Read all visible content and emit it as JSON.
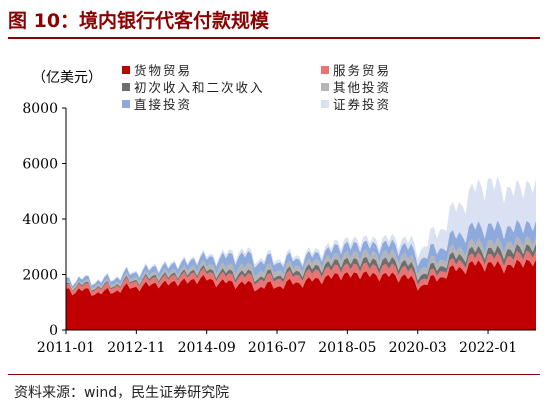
{
  "header": {
    "title": "图 10：境内银行代客付款规模"
  },
  "footer": {
    "source": "资料来源：wind，民生证券研究院"
  },
  "chart_data": {
    "type": "area",
    "stacked": true,
    "ylabel": "（亿美元）",
    "ylim": [
      0,
      8000
    ],
    "yticks": [
      "0",
      "2000",
      "4000",
      "6000",
      "8000"
    ],
    "xticks": [
      "2011-01",
      "2012-11",
      "2014-09",
      "2016-07",
      "2018-05",
      "2020-03",
      "2022-01"
    ],
    "legend_position": "top",
    "series": [
      {
        "name": "货物贸易",
        "color": "#C00000",
        "points": [
          [
            "2011-01",
            1450
          ],
          [
            "2011-07",
            1400
          ],
          [
            "2012-01",
            1330
          ],
          [
            "2012-07",
            1500
          ],
          [
            "2012-11",
            1550
          ],
          [
            "2013-05",
            1650
          ],
          [
            "2013-11",
            1700
          ],
          [
            "2014-05",
            1800
          ],
          [
            "2014-09",
            1850
          ],
          [
            "2015-01",
            1700
          ],
          [
            "2015-07",
            1700
          ],
          [
            "2016-01",
            1550
          ],
          [
            "2016-07",
            1600
          ],
          [
            "2017-01",
            1700
          ],
          [
            "2017-07",
            1800
          ],
          [
            "2018-01",
            1950
          ],
          [
            "2018-05",
            2000
          ],
          [
            "2018-11",
            2000
          ],
          [
            "2019-05",
            1950
          ],
          [
            "2019-11",
            1950
          ],
          [
            "2020-03",
            1600
          ],
          [
            "2020-06",
            1700
          ],
          [
            "2020-12",
            2050
          ],
          [
            "2021-06",
            2300
          ],
          [
            "2022-01",
            2400
          ],
          [
            "2022-06",
            2250
          ],
          [
            "2022-12",
            2450
          ],
          [
            "2023-04",
            2400
          ]
        ]
      },
      {
        "name": "服务贸易",
        "color": "#E87474",
        "points": [
          [
            "2011-01",
            150
          ],
          [
            "2011-07",
            160
          ],
          [
            "2012-01",
            170
          ],
          [
            "2012-07",
            180
          ],
          [
            "2012-11",
            190
          ],
          [
            "2013-05",
            200
          ],
          [
            "2013-11",
            210
          ],
          [
            "2014-05",
            220
          ],
          [
            "2014-09",
            230
          ],
          [
            "2015-01",
            240
          ],
          [
            "2015-07",
            250
          ],
          [
            "2016-01",
            260
          ],
          [
            "2016-07",
            270
          ],
          [
            "2017-01",
            270
          ],
          [
            "2017-07",
            280
          ],
          [
            "2018-01",
            290
          ],
          [
            "2018-05",
            300
          ],
          [
            "2018-11",
            300
          ],
          [
            "2019-05",
            300
          ],
          [
            "2019-11",
            300
          ],
          [
            "2020-03",
            220
          ],
          [
            "2020-06",
            200
          ],
          [
            "2020-12",
            220
          ],
          [
            "2021-06",
            250
          ],
          [
            "2022-01",
            280
          ],
          [
            "2022-06",
            290
          ],
          [
            "2022-12",
            300
          ],
          [
            "2023-04",
            310
          ]
        ]
      },
      {
        "name": "初次收入和二次收入",
        "color": "#6E6E6E",
        "points": [
          [
            "2011-01",
            40
          ],
          [
            "2011-07",
            50
          ],
          [
            "2012-01",
            50
          ],
          [
            "2012-07",
            60
          ],
          [
            "2012-11",
            60
          ],
          [
            "2013-05",
            80
          ],
          [
            "2013-11",
            80
          ],
          [
            "2014-05",
            100
          ],
          [
            "2014-09",
            110
          ],
          [
            "2015-01",
            120
          ],
          [
            "2015-07",
            140
          ],
          [
            "2016-01",
            120
          ],
          [
            "2016-07",
            130
          ],
          [
            "2017-01",
            140
          ],
          [
            "2017-07",
            170
          ],
          [
            "2018-01",
            190
          ],
          [
            "2018-05",
            200
          ],
          [
            "2018-11",
            200
          ],
          [
            "2019-05",
            220
          ],
          [
            "2019-11",
            210
          ],
          [
            "2020-03",
            180
          ],
          [
            "2020-06",
            200
          ],
          [
            "2020-12",
            190
          ],
          [
            "2021-06",
            230
          ],
          [
            "2022-01",
            220
          ],
          [
            "2022-06",
            260
          ],
          [
            "2022-12",
            220
          ],
          [
            "2023-04",
            230
          ]
        ]
      },
      {
        "name": "其他投资",
        "color": "#B5B5B5",
        "points": [
          [
            "2011-01",
            60
          ],
          [
            "2011-07",
            70
          ],
          [
            "2012-01",
            80
          ],
          [
            "2012-07",
            90
          ],
          [
            "2012-11",
            100
          ],
          [
            "2013-05",
            120
          ],
          [
            "2013-11",
            130
          ],
          [
            "2014-05",
            150
          ],
          [
            "2014-09",
            160
          ],
          [
            "2015-01",
            180
          ],
          [
            "2015-07",
            220
          ],
          [
            "2016-01",
            200
          ],
          [
            "2016-07",
            190
          ],
          [
            "2017-01",
            180
          ],
          [
            "2017-07",
            190
          ],
          [
            "2018-01",
            210
          ],
          [
            "2018-05",
            230
          ],
          [
            "2018-11",
            240
          ],
          [
            "2019-05",
            250
          ],
          [
            "2019-11",
            250
          ],
          [
            "2020-03",
            230
          ],
          [
            "2020-06",
            220
          ],
          [
            "2020-12",
            230
          ],
          [
            "2021-06",
            250
          ],
          [
            "2022-01",
            260
          ],
          [
            "2022-06",
            260
          ],
          [
            "2022-12",
            270
          ],
          [
            "2023-04",
            260
          ]
        ]
      },
      {
        "name": "直接投资",
        "color": "#8EA9DB",
        "points": [
          [
            "2011-01",
            120
          ],
          [
            "2011-07",
            130
          ],
          [
            "2012-01",
            140
          ],
          [
            "2012-07",
            170
          ],
          [
            "2012-11",
            180
          ],
          [
            "2013-05",
            200
          ],
          [
            "2013-11",
            220
          ],
          [
            "2014-05",
            250
          ],
          [
            "2014-09",
            280
          ],
          [
            "2015-01",
            320
          ],
          [
            "2015-07",
            420
          ],
          [
            "2016-01",
            360
          ],
          [
            "2016-07",
            300
          ],
          [
            "2017-01",
            260
          ],
          [
            "2017-07",
            250
          ],
          [
            "2018-01",
            300
          ],
          [
            "2018-05",
            330
          ],
          [
            "2018-11",
            320
          ],
          [
            "2019-05",
            330
          ],
          [
            "2019-11",
            350
          ],
          [
            "2020-03",
            350
          ],
          [
            "2020-06",
            380
          ],
          [
            "2020-12",
            450
          ],
          [
            "2021-06",
            550
          ],
          [
            "2022-01",
            600
          ],
          [
            "2022-06",
            550
          ],
          [
            "2022-12",
            560
          ],
          [
            "2023-04",
            520
          ]
        ]
      },
      {
        "name": "证券投资",
        "color": "#D9E1F2",
        "points": [
          [
            "2011-01",
            30
          ],
          [
            "2011-07",
            30
          ],
          [
            "2012-01",
            40
          ],
          [
            "2012-07",
            40
          ],
          [
            "2012-11",
            50
          ],
          [
            "2013-05",
            60
          ],
          [
            "2013-11",
            60
          ],
          [
            "2014-05",
            70
          ],
          [
            "2014-09",
            80
          ],
          [
            "2015-01",
            100
          ],
          [
            "2015-07",
            140
          ],
          [
            "2016-01",
            120
          ],
          [
            "2016-07",
            110
          ],
          [
            "2017-01",
            110
          ],
          [
            "2017-07",
            130
          ],
          [
            "2018-01",
            150
          ],
          [
            "2018-05",
            170
          ],
          [
            "2018-11",
            180
          ],
          [
            "2019-05",
            200
          ],
          [
            "2019-11",
            230
          ],
          [
            "2020-03",
            300
          ],
          [
            "2020-06",
            450
          ],
          [
            "2020-12",
            800
          ],
          [
            "2021-06",
            1200
          ],
          [
            "2022-01",
            1600
          ],
          [
            "2022-06",
            1400
          ],
          [
            "2022-12",
            1350
          ],
          [
            "2023-04",
            1450
          ]
        ]
      }
    ]
  }
}
